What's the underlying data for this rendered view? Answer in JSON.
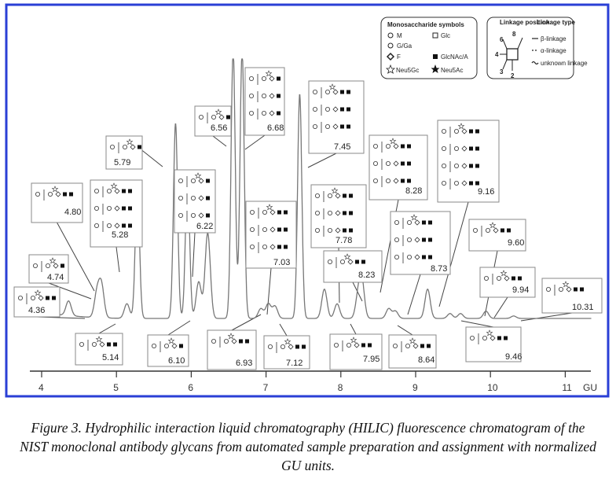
{
  "chart_data": {
    "type": "line",
    "xlabel": "GU",
    "x_ticks": [
      4,
      5,
      6,
      7,
      8,
      9,
      10,
      11
    ],
    "xlim": [
      3.7,
      11.4
    ],
    "peaks": [
      {
        "gu": 4.36,
        "h": 0.06
      },
      {
        "gu": 4.74,
        "h": 0.1
      },
      {
        "gu": 4.8,
        "h": 0.13
      },
      {
        "gu": 5.14,
        "h": 0.06
      },
      {
        "gu": 5.28,
        "h": 0.55
      },
      {
        "gu": 5.79,
        "h": 0.8
      },
      {
        "gu": 5.95,
        "h": 0.58
      },
      {
        "gu": 6.1,
        "h": 0.15
      },
      {
        "gu": 6.22,
        "h": 0.35
      },
      {
        "gu": 6.56,
        "h": 1.1
      },
      {
        "gu": 6.68,
        "h": 1.1
      },
      {
        "gu": 6.93,
        "h": 0.04
      },
      {
        "gu": 7.03,
        "h": 0.06
      },
      {
        "gu": 7.12,
        "h": 0.05
      },
      {
        "gu": 7.45,
        "h": 0.92
      },
      {
        "gu": 7.78,
        "h": 0.12
      },
      {
        "gu": 7.95,
        "h": 0.06
      },
      {
        "gu": 8.23,
        "h": 0.08
      },
      {
        "gu": 8.28,
        "h": 0.15
      },
      {
        "gu": 8.64,
        "h": 0.04
      },
      {
        "gu": 8.73,
        "h": 0.03
      },
      {
        "gu": 9.16,
        "h": 0.12
      },
      {
        "gu": 9.46,
        "h": 0.02
      },
      {
        "gu": 9.6,
        "h": 0.02
      },
      {
        "gu": 9.94,
        "h": 0.03
      },
      {
        "gu": 10.31,
        "h": 0.01
      }
    ],
    "annotations": [
      "4.36",
      "4.74",
      "4.80",
      "5.14",
      "5.28",
      "5.79",
      "6.10",
      "6.22",
      "6.56",
      "6.68",
      "6.93",
      "7.03",
      "7.12",
      "7.45",
      "7.78",
      "7.95",
      "8.23",
      "8.28",
      "8.64",
      "8.73",
      "9.16",
      "9.46",
      "9.60",
      "9.94",
      "10.31"
    ]
  },
  "legend_symbols": {
    "title": "Monosaccharide symbols",
    "items": [
      "M",
      "G/Ga",
      "F",
      "Neu5Gc",
      "Glc",
      "GlcNAc/A",
      "Neu5Ac"
    ]
  },
  "legend_linkage": {
    "title_position": "Linkage position",
    "title_type": "Linkage type",
    "positions": [
      "6",
      "8",
      "4",
      "3",
      "2"
    ],
    "types": [
      "β-linkage",
      "α-linkage",
      "unknown linkage"
    ]
  },
  "caption": "Figure 3. Hydrophilic interaction liquid chromatography (HILIC) fluorescence chromatogram of the NIST monoclonal antibody glycans from automated sample preparation and assignment with normalized GU units.",
  "colors": {
    "frame": "#2a3fd6",
    "trace": "#777777",
    "axis": "#333333"
  }
}
